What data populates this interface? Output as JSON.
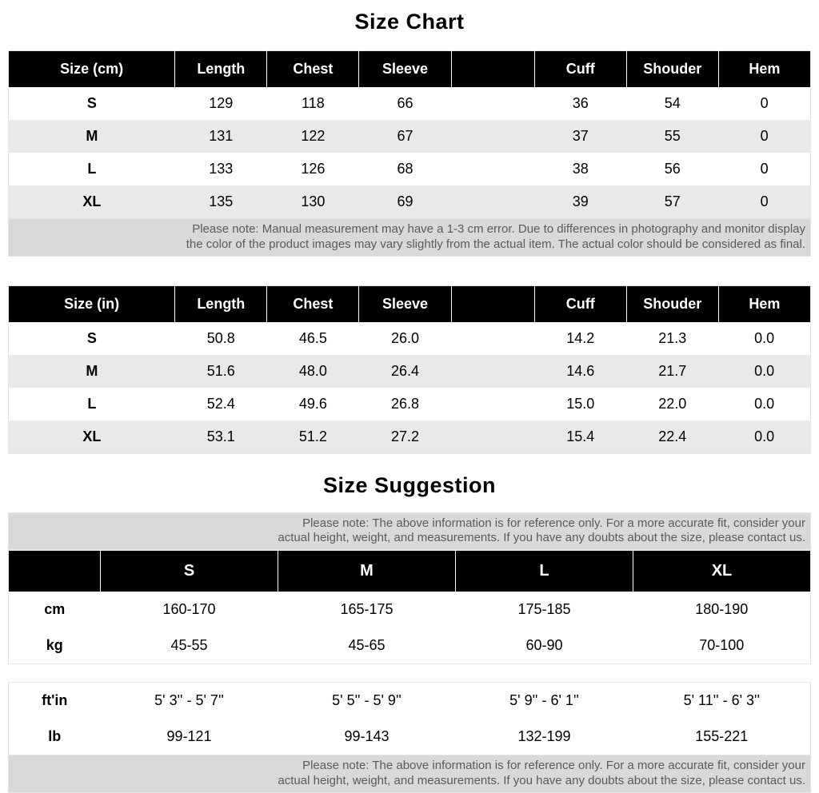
{
  "titles": {
    "sizeChart": "Size Chart",
    "sizeSuggestion": "Size Suggestion"
  },
  "sizeChartCm": {
    "headers": [
      "Size (cm)",
      "Length",
      "Chest",
      "Sleeve",
      "",
      "Cuff",
      "Shouder",
      "Hem"
    ],
    "rows": [
      [
        "S",
        "129",
        "118",
        "66",
        "",
        "36",
        "54",
        "0"
      ],
      [
        "M",
        "131",
        "122",
        "67",
        "",
        "37",
        "55",
        "0"
      ],
      [
        "L",
        "133",
        "126",
        "68",
        "",
        "38",
        "56",
        "0"
      ],
      [
        "XL",
        "135",
        "130",
        "69",
        "",
        "39",
        "57",
        "0"
      ]
    ],
    "note": "Please note: Manual measurement may have a 1-3 cm error. Due to differences in photography and monitor display\nthe color of the product images may vary slightly from the actual item. The actual color should be considered as final."
  },
  "sizeChartIn": {
    "headers": [
      "Size (in)",
      "Length",
      "Chest",
      "Sleeve",
      "",
      "Cuff",
      "Shouder",
      "Hem"
    ],
    "rows": [
      [
        "S",
        "50.8",
        "46.5",
        "26.0",
        "",
        "14.2",
        "21.3",
        "0.0"
      ],
      [
        "M",
        "51.6",
        "48.0",
        "26.4",
        "",
        "14.6",
        "21.7",
        "0.0"
      ],
      [
        "L",
        "52.4",
        "49.6",
        "26.8",
        "",
        "15.0",
        "22.0",
        "0.0"
      ],
      [
        "XL",
        "53.1",
        "51.2",
        "27.2",
        "",
        "15.4",
        "22.4",
        "0.0"
      ]
    ]
  },
  "sizeSuggestion": {
    "noteTop": "Please note: The above information is for reference only. For a more accurate fit, consider your\nactual height, weight, and measurements. If you have any doubts about the size, please contact us.",
    "headers": [
      "",
      "S",
      "M",
      "L",
      "XL"
    ],
    "tableA": [
      [
        "cm",
        "160-170",
        "165-175",
        "175-185",
        "180-190"
      ],
      [
        "kg",
        "45-55",
        "45-65",
        "60-90",
        "70-100"
      ]
    ],
    "tableB": [
      [
        "ft'in",
        "5' 3'' - 5' 7''",
        "5' 5'' - 5' 9''",
        "5' 9'' - 6' 1''",
        "5' 11'' - 6' 3''"
      ],
      [
        "lb",
        "99-121",
        "99-143",
        "132-199",
        "155-221"
      ]
    ],
    "noteBottom": "Please note: The above information is for reference only. For a more accurate fit, consider your\nactual height, weight, and measurements. If you have any doubts about the size, please contact us."
  },
  "styling": {
    "header_bg": "#000000",
    "header_fg": "#ffffff",
    "row_alt_bg": "#e9e9e9",
    "row_bg": "#ffffff",
    "note_bg": "#d9d9d9",
    "note_fg": "#5a5a5a",
    "border": "#e5e5e5",
    "heading_fontsize": 27,
    "th_fontsize": 18,
    "td_fontsize": 18,
    "note_fontsize": 15
  }
}
